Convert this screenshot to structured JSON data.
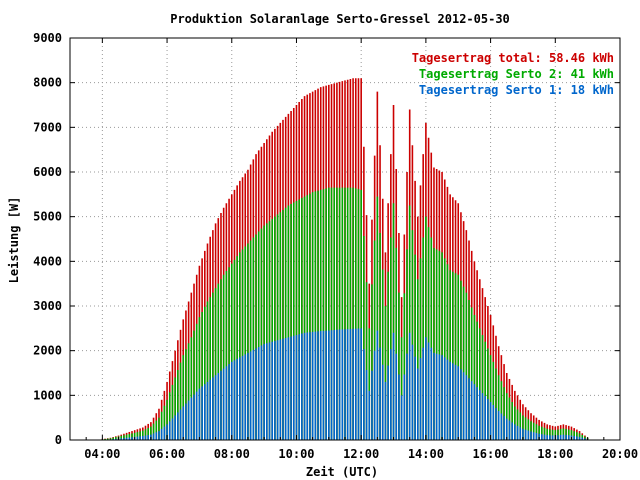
{
  "chart_data": {
    "type": "bar",
    "title": "Produktion Solaranlage Serto-Gressel 2012-05-30",
    "xlabel": "Zeit (UTC)",
    "ylabel": "Leistung [W]",
    "x_ticks": [
      "04:00",
      "06:00",
      "08:00",
      "10:00",
      "12:00",
      "14:00",
      "16:00",
      "18:00",
      "20:00"
    ],
    "y_ticks": [
      "0",
      "1000",
      "2000",
      "3000",
      "4000",
      "5000",
      "6000",
      "7000",
      "8000",
      "9000"
    ],
    "xlim": [
      "03:00",
      "20:00"
    ],
    "ylim": [
      0,
      9000
    ],
    "grid": true,
    "legend_position": "top-right",
    "sample_interval_minutes": 5,
    "series": [
      {
        "name": "Tagesertrag total: 58.46 kWh",
        "color": "#cc0000",
        "x": [
          "04:00",
          "04:15",
          "04:30",
          "04:45",
          "05:00",
          "05:15",
          "05:30",
          "05:45",
          "06:00",
          "06:15",
          "06:30",
          "06:45",
          "07:00",
          "07:15",
          "07:30",
          "07:45",
          "08:00",
          "08:15",
          "08:30",
          "08:45",
          "09:00",
          "09:15",
          "09:30",
          "09:45",
          "10:00",
          "10:15",
          "10:30",
          "10:45",
          "11:00",
          "11:15",
          "11:30",
          "11:45",
          "12:00",
          "12:15",
          "12:30",
          "12:45",
          "13:00",
          "13:15",
          "13:30",
          "13:45",
          "14:00",
          "14:15",
          "14:30",
          "14:45",
          "15:00",
          "15:15",
          "15:30",
          "15:45",
          "16:00",
          "16:15",
          "16:30",
          "16:45",
          "17:00",
          "17:15",
          "17:30",
          "17:45",
          "18:00",
          "18:15",
          "18:30",
          "18:45",
          "19:00"
        ],
        "values": [
          20,
          50,
          100,
          160,
          220,
          280,
          400,
          700,
          1300,
          2000,
          2700,
          3300,
          3900,
          4400,
          4850,
          5200,
          5500,
          5800,
          6050,
          6400,
          6650,
          6900,
          7100,
          7300,
          7500,
          7700,
          7800,
          7900,
          7950,
          8000,
          8050,
          8100,
          8100,
          3500,
          7800,
          4200,
          7500,
          3200,
          7400,
          5000,
          7100,
          6100,
          6000,
          5500,
          5300,
          4700,
          4000,
          3400,
          2800,
          2100,
          1500,
          1100,
          800,
          600,
          450,
          350,
          300,
          350,
          300,
          200,
          50
        ]
      },
      {
        "name": "Tagesertrag Serto 2: 41 kWh",
        "color": "#00aa00",
        "x": [
          "04:00",
          "04:15",
          "04:30",
          "04:45",
          "05:00",
          "05:15",
          "05:30",
          "05:45",
          "06:00",
          "06:15",
          "06:30",
          "06:45",
          "07:00",
          "07:15",
          "07:30",
          "07:45",
          "08:00",
          "08:15",
          "08:30",
          "08:45",
          "09:00",
          "09:15",
          "09:30",
          "09:45",
          "10:00",
          "10:15",
          "10:30",
          "10:45",
          "11:00",
          "11:15",
          "11:30",
          "11:45",
          "12:00",
          "12:15",
          "12:30",
          "12:45",
          "13:00",
          "13:15",
          "13:30",
          "13:45",
          "14:00",
          "14:15",
          "14:30",
          "14:45",
          "15:00",
          "15:15",
          "15:30",
          "15:45",
          "16:00",
          "16:15",
          "16:30",
          "16:45",
          "17:00",
          "17:15",
          "17:30",
          "17:45",
          "18:00",
          "18:15",
          "18:30",
          "18:45",
          "19:00"
        ],
        "values": [
          15,
          40,
          80,
          120,
          160,
          210,
          300,
          500,
          900,
          1400,
          1900,
          2300,
          2750,
          3100,
          3400,
          3700,
          3950,
          4200,
          4400,
          4600,
          4800,
          4950,
          5100,
          5250,
          5350,
          5450,
          5550,
          5600,
          5650,
          5650,
          5650,
          5650,
          5600,
          2500,
          5450,
          3000,
          5300,
          2300,
          5250,
          3600,
          5000,
          4300,
          4200,
          3800,
          3700,
          3300,
          2800,
          2350,
          1900,
          1450,
          1050,
          750,
          550,
          420,
          320,
          250,
          220,
          260,
          220,
          150,
          40
        ]
      },
      {
        "name": "Tagesertrag Serto 1: 18 kWh",
        "color": "#0066cc",
        "x": [
          "04:00",
          "04:15",
          "04:30",
          "04:45",
          "05:00",
          "05:15",
          "05:30",
          "05:45",
          "06:00",
          "06:15",
          "06:30",
          "06:45",
          "07:00",
          "07:15",
          "07:30",
          "07:45",
          "08:00",
          "08:15",
          "08:30",
          "08:45",
          "09:00",
          "09:15",
          "09:30",
          "09:45",
          "10:00",
          "10:15",
          "10:30",
          "10:45",
          "11:00",
          "11:15",
          "11:30",
          "11:45",
          "12:00",
          "12:15",
          "12:30",
          "12:45",
          "13:00",
          "13:15",
          "13:30",
          "13:45",
          "14:00",
          "14:15",
          "14:30",
          "14:45",
          "15:00",
          "15:15",
          "15:30",
          "15:45",
          "16:00",
          "16:15",
          "16:30",
          "16:45",
          "17:00",
          "17:15",
          "17:30",
          "17:45",
          "18:00",
          "18:15",
          "18:30",
          "18:45",
          "19:00"
        ],
        "values": [
          5,
          15,
          30,
          50,
          70,
          90,
          120,
          200,
          350,
          550,
          750,
          950,
          1150,
          1300,
          1450,
          1600,
          1750,
          1850,
          1950,
          2050,
          2150,
          2200,
          2250,
          2300,
          2350,
          2400,
          2420,
          2440,
          2450,
          2470,
          2480,
          2490,
          2500,
          1100,
          2450,
          1300,
          2400,
          1000,
          2400,
          1600,
          2300,
          1950,
          1900,
          1750,
          1650,
          1450,
          1250,
          1050,
          850,
          650,
          480,
          350,
          250,
          190,
          140,
          110,
          100,
          120,
          100,
          70,
          20
        ]
      }
    ]
  }
}
